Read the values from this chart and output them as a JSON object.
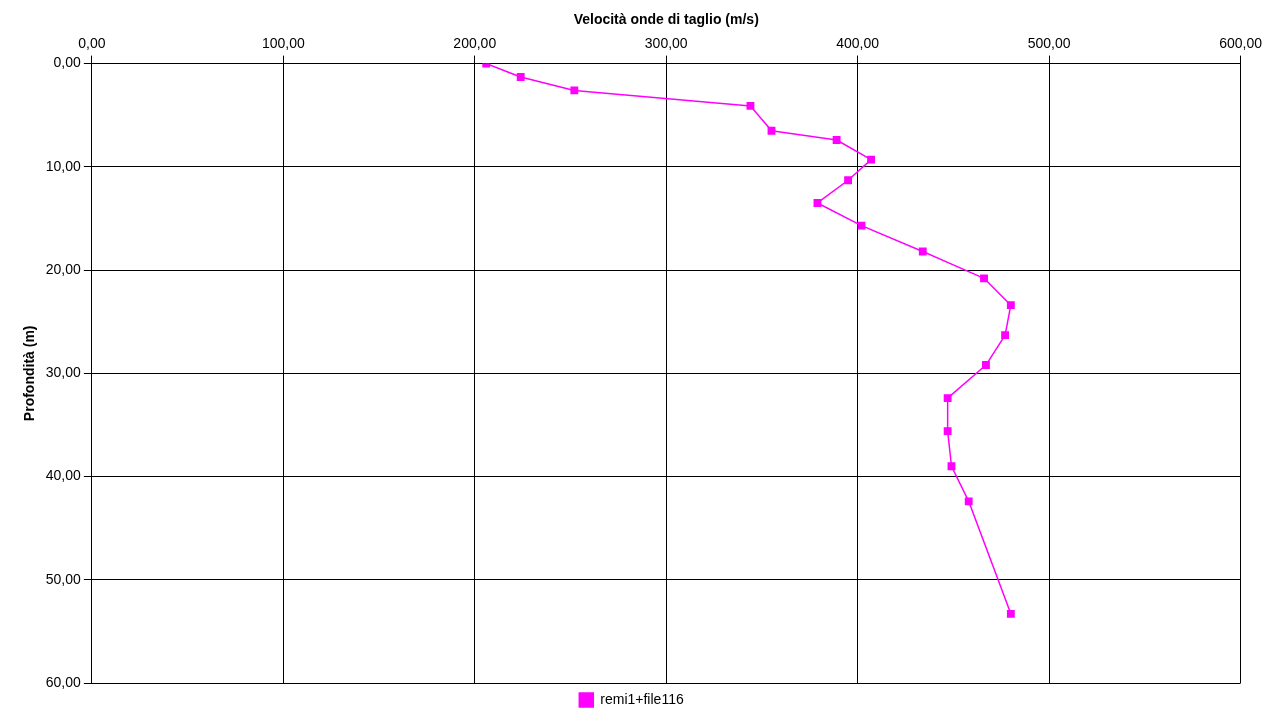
{
  "chart_data": {
    "type": "line",
    "xlabel": "Velocità onde di taglio (m/s)",
    "ylabel": "Profondità (m)",
    "xlim": [
      0,
      600
    ],
    "xticks": [
      {
        "value": 0,
        "label": "0,00"
      },
      {
        "value": 100,
        "label": "100,00"
      },
      {
        "value": 200,
        "label": "200,00"
      },
      {
        "value": 300,
        "label": "300,00"
      },
      {
        "value": 400,
        "label": "400,00"
      },
      {
        "value": 500,
        "label": "500,00"
      },
      {
        "value": 600,
        "label": "600,00"
      }
    ],
    "ylim": [
      60,
      0
    ],
    "yticks": [
      {
        "value": 0,
        "label": "0,00"
      },
      {
        "value": 10,
        "label": "10,00"
      },
      {
        "value": 20,
        "label": "20,00"
      },
      {
        "value": 30,
        "label": "30,00"
      },
      {
        "value": 40,
        "label": "40,00"
      },
      {
        "value": 50,
        "label": "50,00"
      },
      {
        "value": 60,
        "label": "60,00"
      }
    ],
    "series": [
      {
        "name": "remi1+file116",
        "color": "#ff00ff",
        "x": [
          206,
          224,
          252,
          344,
          355,
          389,
          407,
          395,
          379,
          402,
          434,
          466,
          480,
          477,
          467,
          447,
          447,
          449,
          458,
          480
        ],
        "values": [
          0,
          1.3,
          2.6,
          4.1,
          6.5,
          7.4,
          9.3,
          11.3,
          13.5,
          15.7,
          18.2,
          20.8,
          23.4,
          26.3,
          29.2,
          32.4,
          35.6,
          39,
          42.4,
          53.3
        ]
      }
    ],
    "grid": true,
    "legend": "bottom",
    "marker": "square",
    "line_style": "solid"
  }
}
